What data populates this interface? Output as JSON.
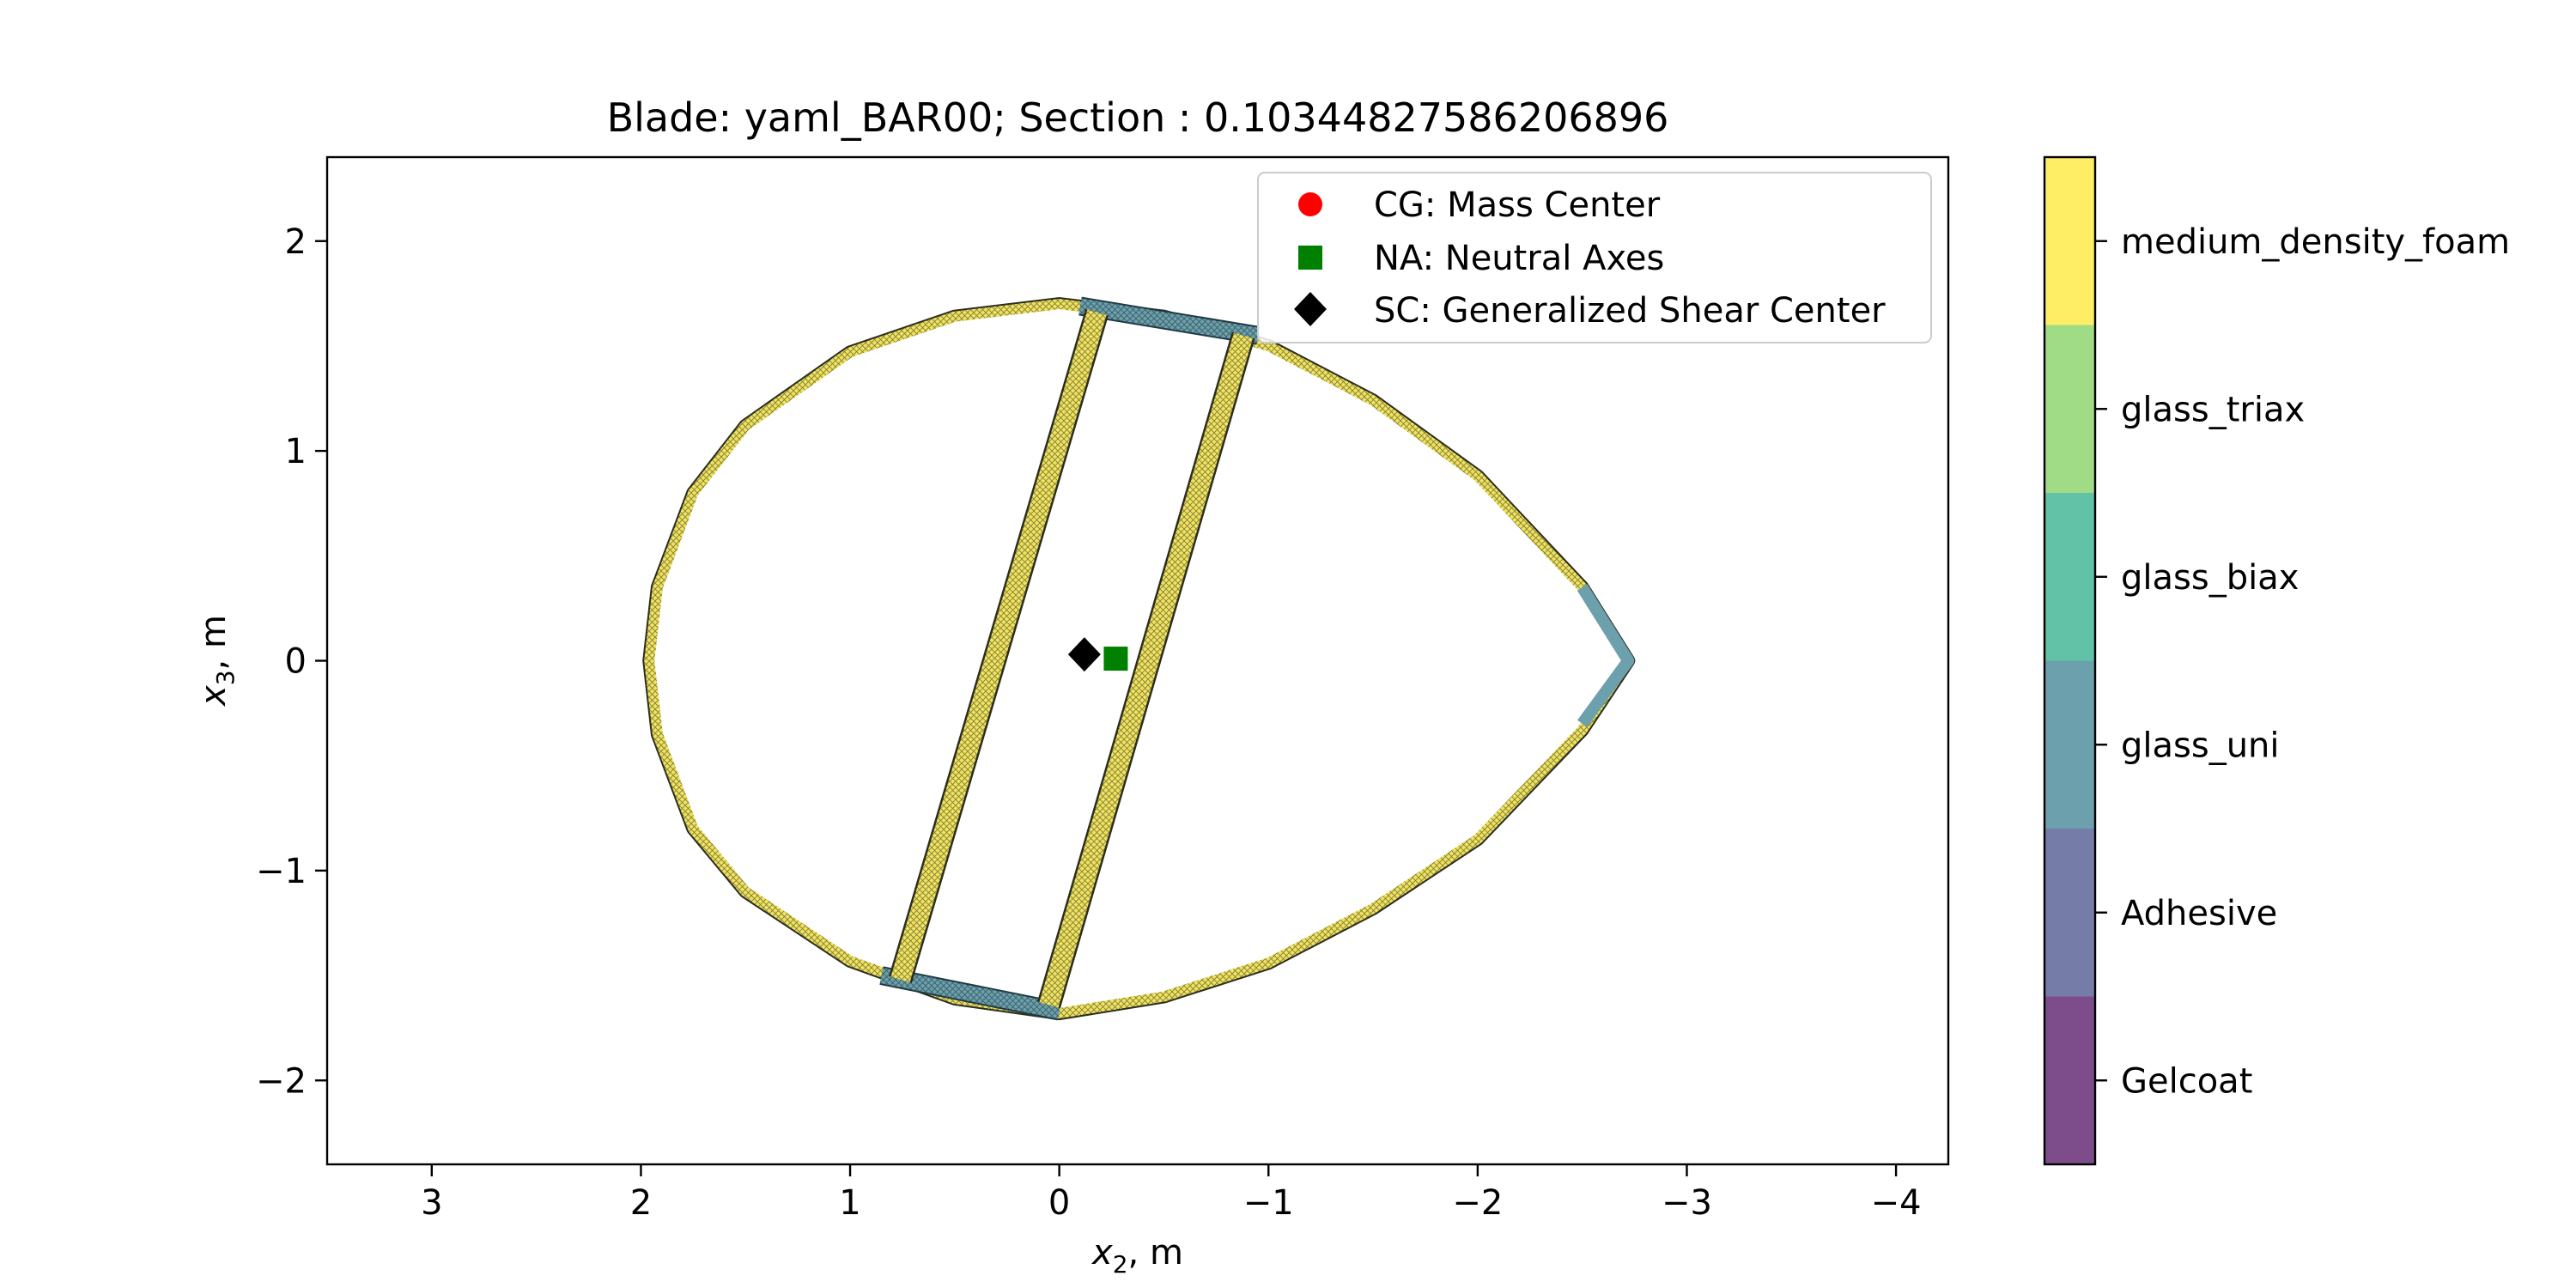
{
  "chart_data": {
    "type": "scatter",
    "title": "Blade: yaml_BAR00; Section : 0.10344827586206896",
    "xlabel_var": "x",
    "xlabel_sub": "2",
    "xlabel_unit": ", m",
    "ylabel_var": "x",
    "ylabel_sub": "3",
    "ylabel_unit": ", m",
    "xlim": [
      3.5,
      -4.25
    ],
    "ylim": [
      -2.4,
      2.4
    ],
    "x_inverted": true,
    "xticks": [
      {
        "v": 3,
        "label": "3"
      },
      {
        "v": 2,
        "label": "2"
      },
      {
        "v": 1,
        "label": "1"
      },
      {
        "v": 0,
        "label": "0"
      },
      {
        "v": -1,
        "label": "−1"
      },
      {
        "v": -2,
        "label": "−2"
      },
      {
        "v": -3,
        "label": "−3"
      },
      {
        "v": -4,
        "label": "−4"
      }
    ],
    "yticks": [
      {
        "v": 2,
        "label": "2"
      },
      {
        "v": 1,
        "label": "1"
      },
      {
        "v": 0,
        "label": "0"
      },
      {
        "v": -1,
        "label": "−1"
      },
      {
        "v": -2,
        "label": "−2"
      }
    ],
    "grid": false,
    "legend_position": "top-right",
    "points": [
      {
        "name": "CG: Mass Center",
        "x": -0.27,
        "y": 0.01,
        "color": "#ff0000",
        "marker": "circle"
      },
      {
        "name": "NA: Neutral Axes",
        "x": -0.27,
        "y": 0.01,
        "color": "#008000",
        "marker": "square"
      },
      {
        "name": "SC: Generalized Shear Center",
        "x": -0.12,
        "y": 0.03,
        "color": "#000000",
        "marker": "diamond"
      }
    ],
    "section": {
      "shell_outline_upper": [
        [
          -2.72,
          0.0
        ],
        [
          -2.5,
          0.35
        ],
        [
          -2.0,
          0.88
        ],
        [
          -1.5,
          1.24
        ],
        [
          -1.0,
          1.5
        ],
        [
          -0.5,
          1.64
        ],
        [
          0.0,
          1.7
        ],
        [
          0.5,
          1.64
        ],
        [
          1.0,
          1.47
        ],
        [
          1.5,
          1.12
        ],
        [
          1.75,
          0.8
        ],
        [
          1.92,
          0.35
        ],
        [
          1.96,
          0.0
        ]
      ],
      "shell_outline_lower": [
        [
          1.96,
          0.0
        ],
        [
          1.92,
          -0.35
        ],
        [
          1.75,
          -0.8
        ],
        [
          1.5,
          -1.1
        ],
        [
          1.0,
          -1.43
        ],
        [
          0.5,
          -1.61
        ],
        [
          0.0,
          -1.68
        ],
        [
          -0.5,
          -1.6
        ],
        [
          -1.0,
          -1.44
        ],
        [
          -1.5,
          -1.18
        ],
        [
          -2.0,
          -0.85
        ],
        [
          -2.5,
          -0.33
        ],
        [
          -2.72,
          0.0
        ]
      ],
      "web_1": [
        [
          -0.18,
          1.66
        ],
        [
          0.76,
          -1.52
        ]
      ],
      "web_2": [
        [
          -0.88,
          1.55
        ],
        [
          0.05,
          -1.64
        ]
      ],
      "spar_cap_upper": [
        [
          -0.1,
          1.69
        ],
        [
          -0.95,
          1.55
        ]
      ],
      "spar_cap_lower": [
        [
          0.85,
          -1.5
        ],
        [
          0.0,
          -1.67
        ]
      ],
      "trailing_edge": [
        [
          -2.5,
          0.35
        ],
        [
          -2.72,
          0.0
        ],
        [
          -2.5,
          -0.3
        ]
      ]
    },
    "colorbar": {
      "labels": [
        "medium_density_foam",
        "glass_triax",
        "glass_biax",
        "glass_uni",
        "Adhesive",
        "Gelcoat"
      ],
      "colors": [
        "#fdee65",
        "#a0db86",
        "#61c2a7",
        "#6ca0ac",
        "#767ca8",
        "#7d4c8a"
      ]
    }
  }
}
